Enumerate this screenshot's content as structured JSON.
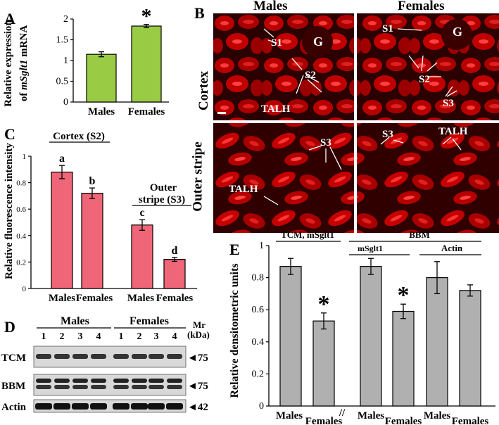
{
  "panel_labels": {
    "A": "A",
    "B": "B",
    "C": "C",
    "D": "D",
    "E": "E"
  },
  "panel_a": {
    "ylabel_line1": "Relative expression",
    "ylabel_line2_prefix": "of ",
    "ylabel_line2_gene": "mSglt1",
    "ylabel_line2_suffix": " mRNA",
    "star": "*"
  },
  "panel_b": {
    "col_males": "Males",
    "col_females": "Females",
    "row_cortex": "Cortex",
    "row_outer_stripe": "Outer stripe",
    "labels": {
      "m_cortex_s1": "S1",
      "m_cortex_g": "G",
      "m_cortex_s2": "S2",
      "m_cortex_talh": "TALH",
      "f_cortex_s1": "S1",
      "f_cortex_g": "G",
      "f_cortex_s2": "S2",
      "f_cortex_s3": "S3",
      "m_outer_s3": "S3",
      "m_outer_talh": "TALH",
      "f_outer_s3": "S3",
      "f_outer_talh": "TALH"
    },
    "colors": {
      "background": "#2a0000",
      "tubule": "#c80000",
      "brush_border": "#ff3030",
      "lumen": "#500000"
    }
  },
  "panel_c": {
    "group1": "Cortex (S2)",
    "group2_line1": "Outer",
    "group2_line2": "stripe (S3)"
  },
  "panel_d": {
    "males": "Males",
    "females": "Females",
    "mr_line1": "Mr",
    "mr_line2": "(kDa)",
    "lanes": [
      "1",
      "2",
      "3",
      "4",
      "1",
      "2",
      "3",
      "4"
    ],
    "rows": [
      {
        "label": "TCM",
        "marker": "◄75"
      },
      {
        "label": "BBM",
        "marker": "◄75"
      },
      {
        "label": "Actin",
        "marker": "◄42"
      }
    ]
  },
  "panel_e": {
    "tcm_header": "TCM, mSglt1",
    "bbm_header": "BBM",
    "bbm_sub1": "mSglt1",
    "bbm_sub2": "Actin",
    "break_mark": "//"
  },
  "chart_data": [
    {
      "id": "A",
      "type": "bar",
      "categories": [
        "Males",
        "Females"
      ],
      "values": [
        1.15,
        1.83
      ],
      "errors": [
        0.06,
        0.04
      ],
      "annotations": [
        "",
        "*"
      ],
      "ylabel": "Relative expression of mSglt1 mRNA",
      "ylim": [
        0,
        2
      ],
      "yticks": [
        0,
        0.5,
        1,
        1.5,
        2
      ],
      "ytick_labels": [
        "0",
        "0.5",
        "1",
        "1.5",
        "2"
      ],
      "color": "#99cc44"
    },
    {
      "id": "C",
      "type": "bar",
      "categories": [
        "Males",
        "Females",
        "Males",
        "Females"
      ],
      "values": [
        0.88,
        0.72,
        0.48,
        0.22
      ],
      "errors": [
        0.05,
        0.04,
        0.04,
        0.015
      ],
      "annotations": [
        "a",
        "b",
        "c",
        "d"
      ],
      "ylabel": "Relative fluorescence intensity",
      "ylim": [
        0,
        1
      ],
      "yticks": [
        0,
        0.2,
        0.4,
        0.6,
        0.8,
        1
      ],
      "ytick_labels": [
        "0",
        "0.2",
        "0.4",
        "0.6",
        "0.8",
        "1"
      ],
      "color": "#ee6677"
    },
    {
      "id": "E",
      "type": "bar",
      "categories": [
        "Males",
        "Females",
        "Males",
        "Females",
        "Males",
        "Females"
      ],
      "values": [
        0.87,
        0.53,
        0.87,
        0.59,
        0.8,
        0.72
      ],
      "errors": [
        0.05,
        0.05,
        0.05,
        0.045,
        0.1,
        0.035
      ],
      "annotations": [
        "",
        "*",
        "",
        "*",
        "",
        ""
      ],
      "ylabel": "Relative densitometric units",
      "ylim": [
        0,
        1
      ],
      "yticks": [
        0,
        0.2,
        0.4,
        0.6,
        0.8,
        1
      ],
      "ytick_labels": [
        "0",
        "0.2",
        "0.4",
        "0.6",
        "0.8",
        "1"
      ],
      "color": "#b0b0b0"
    }
  ]
}
